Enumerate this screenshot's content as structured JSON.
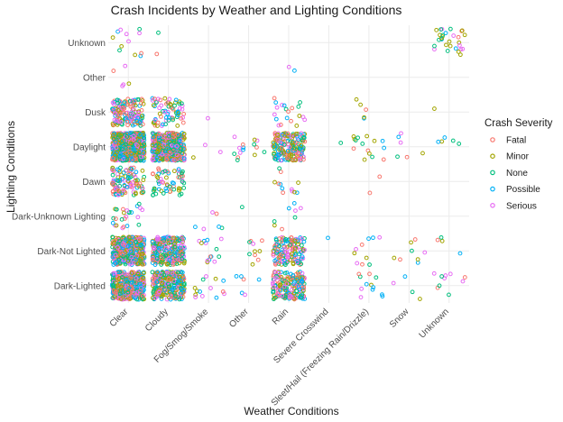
{
  "chart_data": {
    "type": "scatter",
    "jitter": true,
    "title": "Crash Incidents by Weather and Lighting Conditions",
    "xlabel": "Weather Conditions",
    "ylabel": "Lighting Conditions",
    "categories_x": [
      "Clear",
      "Cloudy",
      "Fog/Smog/Smoke",
      "Other",
      "Rain",
      "Severe Crosswind",
      "Sleet/Hail (Freezing Rain/Drizzle)",
      "Snow",
      "Unknown"
    ],
    "categories_y": [
      "Dark-Lighted",
      "Dark-Not Lighted",
      "Dark-Unknown Lighting",
      "Dawn",
      "Daylight",
      "Dusk",
      "Other",
      "Unknown"
    ],
    "grid": true,
    "legend": {
      "title": "Crash Severity",
      "placement": "right",
      "entries": [
        {
          "name": "Fatal",
          "color": "#F8766D"
        },
        {
          "name": "Minor",
          "color": "#A3A500"
        },
        {
          "name": "None",
          "color": "#00BF7D"
        },
        {
          "name": "Possible",
          "color": "#00B0F6"
        },
        {
          "name": "Serious",
          "color": "#E76BF3"
        }
      ]
    },
    "approx_counts": {
      "Clear": {
        "Dark-Lighted": 400,
        "Dark-Not Lighted": 400,
        "Dark-Unknown Lighting": 26,
        "Dawn": 110,
        "Daylight": 900,
        "Dusk": 150,
        "Other": 5,
        "Unknown": 12
      },
      "Cloudy": {
        "Dark-Lighted": 280,
        "Dark-Not Lighted": 260,
        "Dark-Unknown Lighting": 0,
        "Dawn": 60,
        "Daylight": 480,
        "Dusk": 70,
        "Other": 0,
        "Unknown": 2
      },
      "Fog/Smog/Smoke": {
        "Dark-Lighted": 14,
        "Dark-Not Lighted": 14,
        "Dark-Unknown Lighting": 6,
        "Dawn": 0,
        "Daylight": 3,
        "Dusk": 1,
        "Other": 0,
        "Unknown": 0
      },
      "Other": {
        "Dark-Lighted": 6,
        "Dark-Not Lighted": 10,
        "Dark-Unknown Lighting": 1,
        "Dawn": 0,
        "Daylight": 15,
        "Dusk": 0,
        "Other": 0,
        "Unknown": 0
      },
      "Rain": {
        "Dark-Lighted": 180,
        "Dark-Not Lighted": 150,
        "Dark-Unknown Lighting": 8,
        "Dawn": 12,
        "Daylight": 200,
        "Dusk": 20,
        "Other": 2,
        "Unknown": 0
      },
      "Severe Crosswind": {
        "Dark-Lighted": 0,
        "Dark-Not Lighted": 1,
        "Dark-Unknown Lighting": 0,
        "Dawn": 0,
        "Daylight": 1,
        "Dusk": 0,
        "Other": 0,
        "Unknown": 0
      },
      "Sleet/Hail (Freezing Rain/Drizzle)": {
        "Dark-Lighted": 12,
        "Dark-Not Lighted": 10,
        "Dark-Unknown Lighting": 0,
        "Dawn": 2,
        "Daylight": 15,
        "Dusk": 5,
        "Other": 0,
        "Unknown": 0
      },
      "Snow": {
        "Dark-Lighted": 4,
        "Dark-Not Lighted": 8,
        "Dark-Unknown Lighting": 0,
        "Dawn": 0,
        "Daylight": 6,
        "Dusk": 0,
        "Other": 0,
        "Unknown": 0
      },
      "Unknown": {
        "Dark-Lighted": 10,
        "Dark-Not Lighted": 4,
        "Dark-Unknown Lighting": 0,
        "Dawn": 0,
        "Daylight": 5,
        "Dusk": 1,
        "Other": 0,
        "Unknown": 30
      }
    },
    "jitter_width": 0.4,
    "jitter_height": 0.4
  }
}
